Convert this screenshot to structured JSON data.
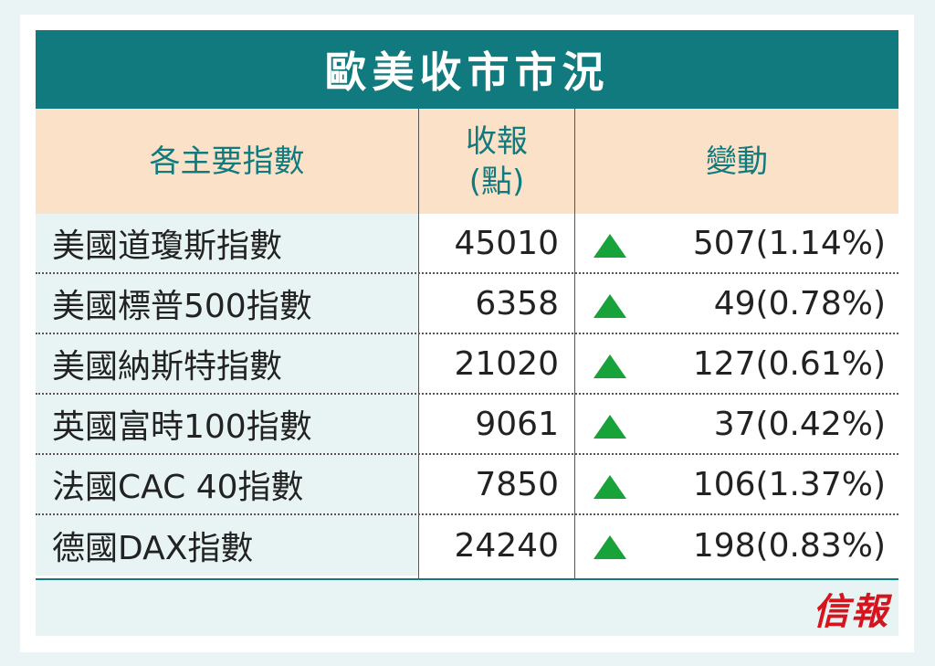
{
  "title": "歐美收市市況",
  "headers": {
    "index": "各主要指數",
    "close_line1": "收報",
    "close_line2": "(點)",
    "change": "變動"
  },
  "rows": [
    {
      "name": "美國道瓊斯指數",
      "close": "45010",
      "change": "507(1.14%)",
      "direction": "up"
    },
    {
      "name": "美國標普500指數",
      "close": "6358",
      "change": "49(0.78%)",
      "direction": "up"
    },
    {
      "name": "美國納斯特指數",
      "close": "21020",
      "change": "127(0.61%)",
      "direction": "up"
    },
    {
      "name": "英國富時100指數",
      "close": "9061",
      "change": "37(0.42%)",
      "direction": "up"
    },
    {
      "name": "法國CAC 40指數",
      "close": "7850",
      "change": "106(1.37%)",
      "direction": "up"
    },
    {
      "name": "德國DAX指數",
      "close": "24240",
      "change": "198(0.83%)",
      "direction": "up"
    }
  ],
  "logo": "信報",
  "colors": {
    "header_bg": "#117a7e",
    "subheader_bg": "#fbe1c7",
    "up_arrow": "#18a33a",
    "logo": "#d6141d"
  }
}
